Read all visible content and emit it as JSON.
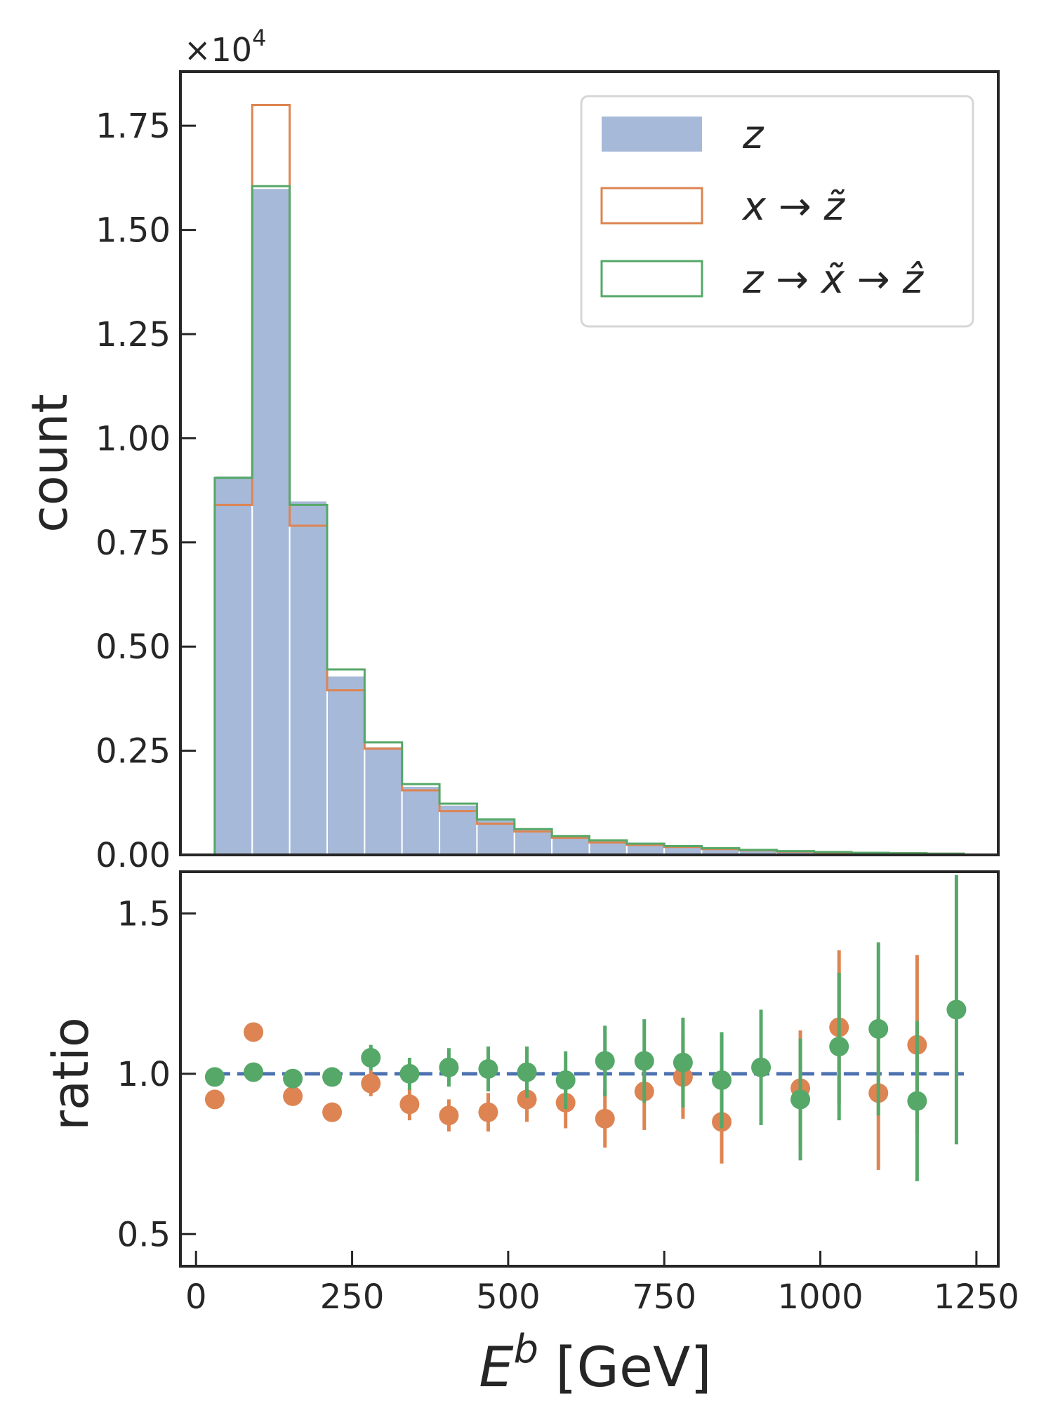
{
  "chart_data": [
    {
      "type": "histogram",
      "panel": "top",
      "ylabel": "count",
      "ylim": [
        0,
        1.88
      ],
      "y_scale_label": "×10",
      "y_scale_exponent": "4",
      "yticks": [
        0,
        0.25,
        0.5,
        0.75,
        1.0,
        1.25,
        1.5,
        1.75
      ],
      "ytick_labels": [
        "0.00",
        "0.25",
        "0.50",
        "0.75",
        "1.00",
        "1.25",
        "1.50",
        "1.75"
      ],
      "xlim": [
        -25,
        1285
      ],
      "bin_edges": [
        30,
        90,
        150,
        210,
        270,
        330,
        390,
        450,
        510,
        570,
        630,
        690,
        750,
        810,
        870,
        930,
        990,
        1050,
        1110,
        1170,
        1230
      ],
      "series": [
        {
          "name": "z",
          "style": "filled",
          "color": "#a7b9d8",
          "values": [
            0.91,
            1.6,
            0.85,
            0.43,
            0.26,
            0.165,
            0.12,
            0.085,
            0.062,
            0.045,
            0.034,
            0.026,
            0.02,
            0.016,
            0.012,
            0.009,
            0.007,
            0.005,
            0.004,
            0.003
          ]
        },
        {
          "name": "x → z̃",
          "style": "step",
          "color": "#dd8452",
          "values": [
            0.84,
            1.8,
            0.79,
            0.395,
            0.255,
            0.155,
            0.105,
            0.075,
            0.056,
            0.041,
            0.03,
            0.024,
            0.019,
            0.014,
            0.011,
            0.008,
            0.006,
            0.005,
            0.004,
            0.003
          ]
        },
        {
          "name": "z → x̃ → ẑ",
          "style": "step",
          "color": "#55a868",
          "values": [
            0.905,
            1.605,
            0.84,
            0.445,
            0.27,
            0.17,
            0.123,
            0.085,
            0.062,
            0.045,
            0.035,
            0.027,
            0.021,
            0.016,
            0.012,
            0.009,
            0.007,
            0.005,
            0.004,
            0.003
          ]
        }
      ],
      "legend": {
        "placement": "top-right",
        "entries": [
          {
            "label": "z",
            "color": "#a7b9d8",
            "style": "filled"
          },
          {
            "label": "x → z̃",
            "color": "#dd8452",
            "style": "outline"
          },
          {
            "label": "z → x̃ → ẑ",
            "color": "#55a868",
            "style": "outline"
          }
        ]
      }
    },
    {
      "type": "scatter",
      "panel": "bottom",
      "ylabel": "ratio",
      "xlabel_base": "E",
      "xlabel_superscript": "b",
      "xlabel_unit": "[GeV]",
      "ylim": [
        0.4,
        1.63
      ],
      "xlim": [
        -25,
        1285
      ],
      "yticks": [
        0.5,
        1.0,
        1.5
      ],
      "ytick_labels": [
        "0.5",
        "1.0",
        "1.5"
      ],
      "xticks": [
        0,
        250,
        500,
        750,
        1000,
        1250
      ],
      "xtick_labels": [
        "0",
        "250",
        "500",
        "750",
        "1000",
        "1250"
      ],
      "reference_line": {
        "y": 1.0,
        "style": "dashed",
        "color": "#4c72b0"
      },
      "series": [
        {
          "name": "x → z̃",
          "color": "#dd8452",
          "x": [
            30,
            92,
            155,
            218,
            280,
            342,
            405,
            468,
            530,
            592,
            655,
            718,
            780,
            842,
            968,
            1030,
            1093,
            1155
          ],
          "y": [
            0.92,
            1.13,
            0.93,
            0.88,
            0.97,
            0.905,
            0.87,
            0.88,
            0.92,
            0.91,
            0.86,
            0.945,
            0.99,
            0.85,
            0.955,
            1.145,
            0.94,
            1.09
          ],
          "err": [
            0.0,
            0.0,
            0.0,
            0.0,
            0.04,
            0.05,
            0.05,
            0.06,
            0.07,
            0.08,
            0.09,
            0.12,
            0.13,
            0.13,
            0.18,
            0.24,
            0.24,
            0.28
          ]
        },
        {
          "name": "z → x̃ → ẑ",
          "color": "#55a868",
          "x": [
            30,
            92,
            155,
            218,
            280,
            342,
            405,
            468,
            530,
            592,
            655,
            718,
            780,
            842,
            905,
            968,
            1030,
            1093,
            1155,
            1218
          ],
          "y": [
            0.99,
            1.005,
            0.985,
            0.99,
            1.05,
            1.0,
            1.02,
            1.015,
            1.005,
            0.98,
            1.04,
            1.04,
            1.035,
            0.98,
            1.02,
            0.92,
            1.085,
            1.14,
            0.915,
            1.2
          ],
          "err": [
            0.0,
            0.0,
            0.0,
            0.0,
            0.04,
            0.05,
            0.06,
            0.07,
            0.08,
            0.09,
            0.11,
            0.13,
            0.14,
            0.15,
            0.18,
            0.19,
            0.23,
            0.27,
            0.25,
            0.42
          ]
        }
      ]
    }
  ]
}
